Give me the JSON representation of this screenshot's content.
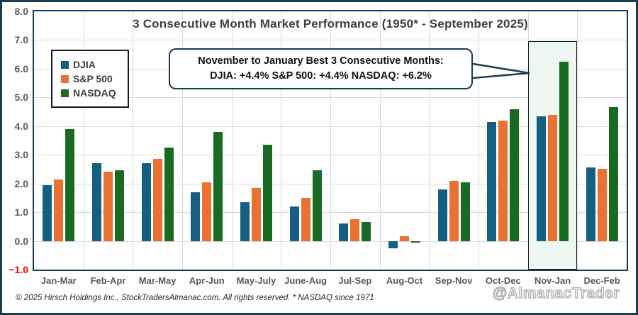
{
  "title": "3 Consecutive Month Market Performance (1950* - September 2025)",
  "callout": {
    "line1": "November to January Best 3 Consecutive Months:",
    "line2": "DJIA: +4.4% S&P 500: +4.4% NASDAQ: +6.2%"
  },
  "footer": {
    "copyright": "© 2025 Hirsch Holdings Inc., StockTradersAlmanac.com. All rights reserved. * NASDAQ since 1971",
    "watermark": "@AlmanacTrader"
  },
  "colors": {
    "frame": "#1d3c50",
    "gridline": "#d9d9d9",
    "tick_text": "#595959",
    "negative_tick": "#ff0000",
    "highlight_fill": "#edf6f0",
    "highlight_border": "#1a1a1a"
  },
  "chart_data": {
    "type": "bar",
    "title": "3 Consecutive Month Market Performance (1950* - September 2025)",
    "categories": [
      "Jan-Mar",
      "Feb-Apr",
      "Mar-May",
      "Apr-Jun",
      "May-July",
      "June-Aug",
      "Jul-Sep",
      "Aug-Oct",
      "Sep-Nov",
      "Oct-Dec",
      "Nov-Jan",
      "Dec-Feb"
    ],
    "series": [
      {
        "name": "DJIA",
        "color": "#156082",
        "values": [
          1.95,
          2.7,
          2.7,
          1.7,
          1.35,
          1.2,
          0.6,
          -0.25,
          1.8,
          4.15,
          4.35,
          2.55
        ]
      },
      {
        "name": "S&P 500",
        "color": "#E97132",
        "values": [
          2.15,
          2.4,
          2.85,
          2.05,
          1.85,
          1.5,
          0.75,
          0.15,
          2.1,
          4.2,
          4.4,
          2.5
        ]
      },
      {
        "name": "NASDAQ",
        "color": "#196B24",
        "values": [
          3.9,
          2.45,
          3.25,
          3.8,
          3.35,
          2.45,
          0.65,
          -0.05,
          2.05,
          4.6,
          6.25,
          4.65
        ]
      }
    ],
    "ylim": [
      -1,
      8
    ],
    "ytick_step": 1,
    "ytick_labels": [
      "8.0",
      "7.0",
      "6.0",
      "5.0",
      "4.0",
      "3.0",
      "2.0",
      "1.0",
      "0.0",
      "−1.0"
    ],
    "xlabel": "",
    "ylabel": "",
    "grid": true,
    "legend_position": "top-left",
    "highlight_category": "Nov-Jan",
    "annotation_target": "NASDAQ Nov-Jan bar"
  }
}
